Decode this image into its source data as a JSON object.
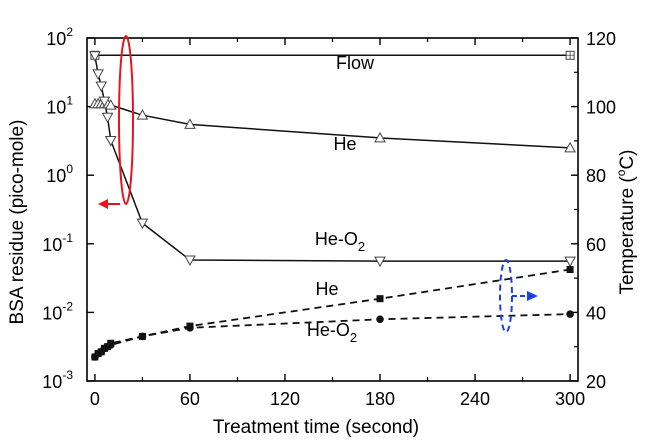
{
  "chart_data": {
    "type": "line",
    "xlabel": "Treatment time (second)",
    "ylabel_left": "BSA residue (pico-mole)",
    "ylabel_right": {
      "text": "Temperature (",
      "sup": "o",
      "tail": "C)"
    },
    "xlim": [
      -5,
      305
    ],
    "ylim_left_log10": [
      -3,
      2
    ],
    "ylim_right": [
      20,
      120
    ],
    "x_ticks": [
      0,
      60,
      120,
      180,
      240,
      300
    ],
    "y_left_ticks": [
      {
        "base": "10",
        "exp": "2",
        "v": 100
      },
      {
        "base": "10",
        "exp": "1",
        "v": 10
      },
      {
        "base": "10",
        "exp": "0",
        "v": 1
      },
      {
        "base": "10",
        "exp": "-1",
        "v": 0.1
      },
      {
        "base": "10",
        "exp": "-2",
        "v": 0.01
      },
      {
        "base": "10",
        "exp": "-3",
        "v": 0.001
      }
    ],
    "y_right_ticks": [
      20,
      40,
      60,
      80,
      100,
      120
    ],
    "series": [
      {
        "name": "Flow",
        "axis": "left",
        "style": "solid",
        "marker": "square-plus",
        "label": {
          "text": "Flow",
          "sub": ""
        },
        "x": [
          0,
          300
        ],
        "y": [
          56,
          56
        ]
      },
      {
        "name": "He",
        "axis": "left",
        "style": "solid",
        "marker": "triangle-up",
        "label": {
          "text": "He",
          "sub": ""
        },
        "x": [
          0,
          2,
          4,
          6,
          8,
          10,
          30,
          60,
          180,
          300
        ],
        "y": [
          11,
          11,
          11,
          11,
          11,
          10.5,
          7.5,
          5.5,
          3.5,
          2.5
        ]
      },
      {
        "name": "He-O2",
        "axis": "left",
        "style": "solid",
        "marker": "triangle-down",
        "label": {
          "text": "He-O",
          "sub": "2"
        },
        "x": [
          0,
          2,
          4,
          6,
          8,
          10,
          30,
          60,
          180,
          300
        ],
        "y": [
          55,
          30,
          20,
          12,
          7,
          3.2,
          0.2,
          0.058,
          0.056,
          0.056
        ]
      },
      {
        "name": "He (temperature)",
        "axis": "right",
        "style": "dashed",
        "marker": "square",
        "label": {
          "text": "He",
          "sub": ""
        },
        "x": [
          0,
          2,
          4,
          6,
          8,
          10,
          30,
          60,
          180,
          300
        ],
        "y": [
          27,
          28,
          28.5,
          29.5,
          30,
          31,
          33,
          36,
          44,
          52.5
        ]
      },
      {
        "name": "He-O2 (temperature)",
        "axis": "right",
        "style": "dashed",
        "marker": "circle",
        "label": {
          "text": "He-O",
          "sub": "2"
        },
        "x": [
          0,
          2,
          4,
          6,
          8,
          10,
          30,
          60,
          180,
          300
        ],
        "y": [
          27,
          28,
          28.5,
          29.5,
          30,
          30.5,
          33,
          35.5,
          38,
          39.5
        ]
      }
    ],
    "annotations": [
      {
        "kind": "ellipse-arrow",
        "color": "#e8141b",
        "direction": "left",
        "points_to": "left axis"
      },
      {
        "kind": "ellipse-arrow",
        "color": "#1f3fe0",
        "direction": "right",
        "points_to": "right axis"
      }
    ],
    "grid": false,
    "legend": "none"
  }
}
